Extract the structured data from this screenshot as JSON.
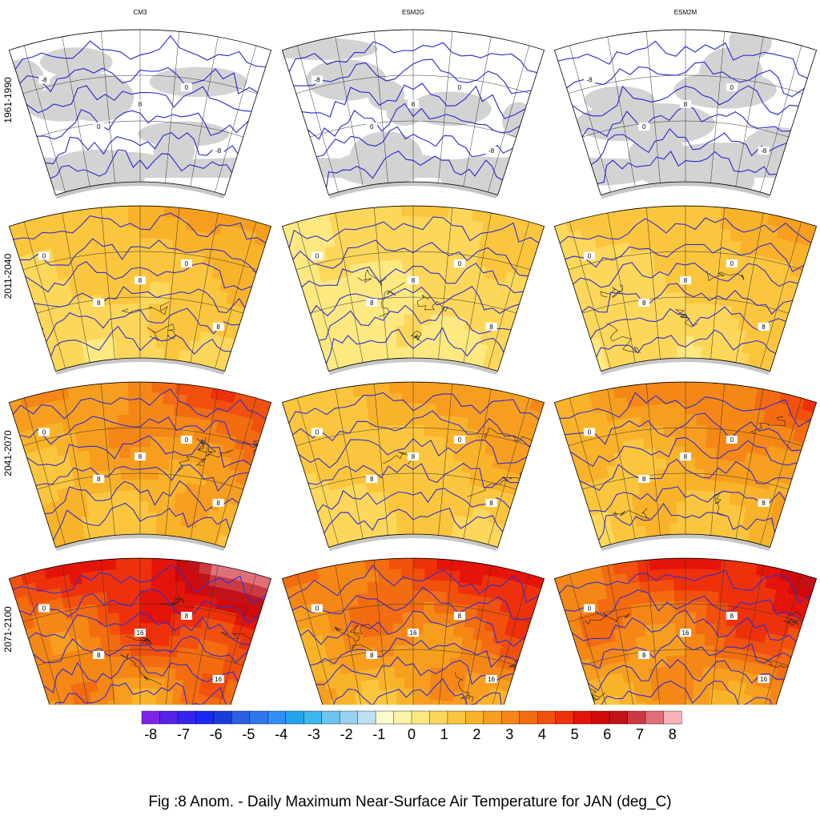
{
  "figure": {
    "caption": "Fig :8  Anom.  - Daily Maximum Near-Surface Air Temperature for JAN (deg_C)"
  },
  "models": [
    "CM3",
    "ESM2G",
    "ESM2M"
  ],
  "periods": [
    "1961-1990",
    "2011-2040",
    "2041-2070",
    "2071-2100"
  ],
  "contour_labels": [
    "-8",
    "0",
    "8",
    "16"
  ],
  "colorbar": {
    "ticks": [
      "-8",
      "-7",
      "-6",
      "-5",
      "-4",
      "-3",
      "-2",
      "-1",
      "0",
      "1",
      "2",
      "3",
      "4",
      "5",
      "6",
      "7",
      "8"
    ],
    "colors": [
      "#7f23e6",
      "#5522ea",
      "#3224ee",
      "#1a28f2",
      "#1a3cd8",
      "#2b5fe4",
      "#2e77ec",
      "#2f8ff2",
      "#23a2f0",
      "#3cb6ee",
      "#6ec4ee",
      "#96d2f0",
      "#bee0f2",
      "#fbfbcd",
      "#fdf3a6",
      "#fde980",
      "#fcd75a",
      "#fbc63e",
      "#f9b32a",
      "#f79e1f",
      "#f58716",
      "#f36c10",
      "#f1510c",
      "#ee310a",
      "#e41408",
      "#d00a0a",
      "#c1121a",
      "#cb3a42",
      "#df7078",
      "#f6b4b8"
    ]
  },
  "map_colors": {
    "land": "#d3d3d3",
    "sea": "#ffffff",
    "contour": "#2f2fd4",
    "coast": "#222222",
    "graticule": "#333333",
    "rim": "#c7c7c7",
    "baseline_contour": "#2626d0"
  },
  "panels": [
    {
      "period": "1961-1990",
      "model": "CM3",
      "level": 0
    },
    {
      "period": "1961-1990",
      "model": "ESM2G",
      "level": 0
    },
    {
      "period": "1961-1990",
      "model": "ESM2M",
      "level": 0
    },
    {
      "period": "2011-2040",
      "model": "CM3",
      "level": 2.2
    },
    {
      "period": "2011-2040",
      "model": "ESM2G",
      "level": 1.3
    },
    {
      "period": "2011-2040",
      "model": "ESM2M",
      "level": 2.0
    },
    {
      "period": "2041-2070",
      "model": "CM3",
      "level": 3.8
    },
    {
      "period": "2041-2070",
      "model": "ESM2G",
      "level": 2.6
    },
    {
      "period": "2041-2070",
      "model": "ESM2M",
      "level": 3.5
    },
    {
      "period": "2071-2100",
      "model": "CM3",
      "level": 6.2
    },
    {
      "period": "2071-2100",
      "model": "ESM2G",
      "level": 4.8
    },
    {
      "period": "2071-2100",
      "model": "ESM2M",
      "level": 5.3
    }
  ]
}
